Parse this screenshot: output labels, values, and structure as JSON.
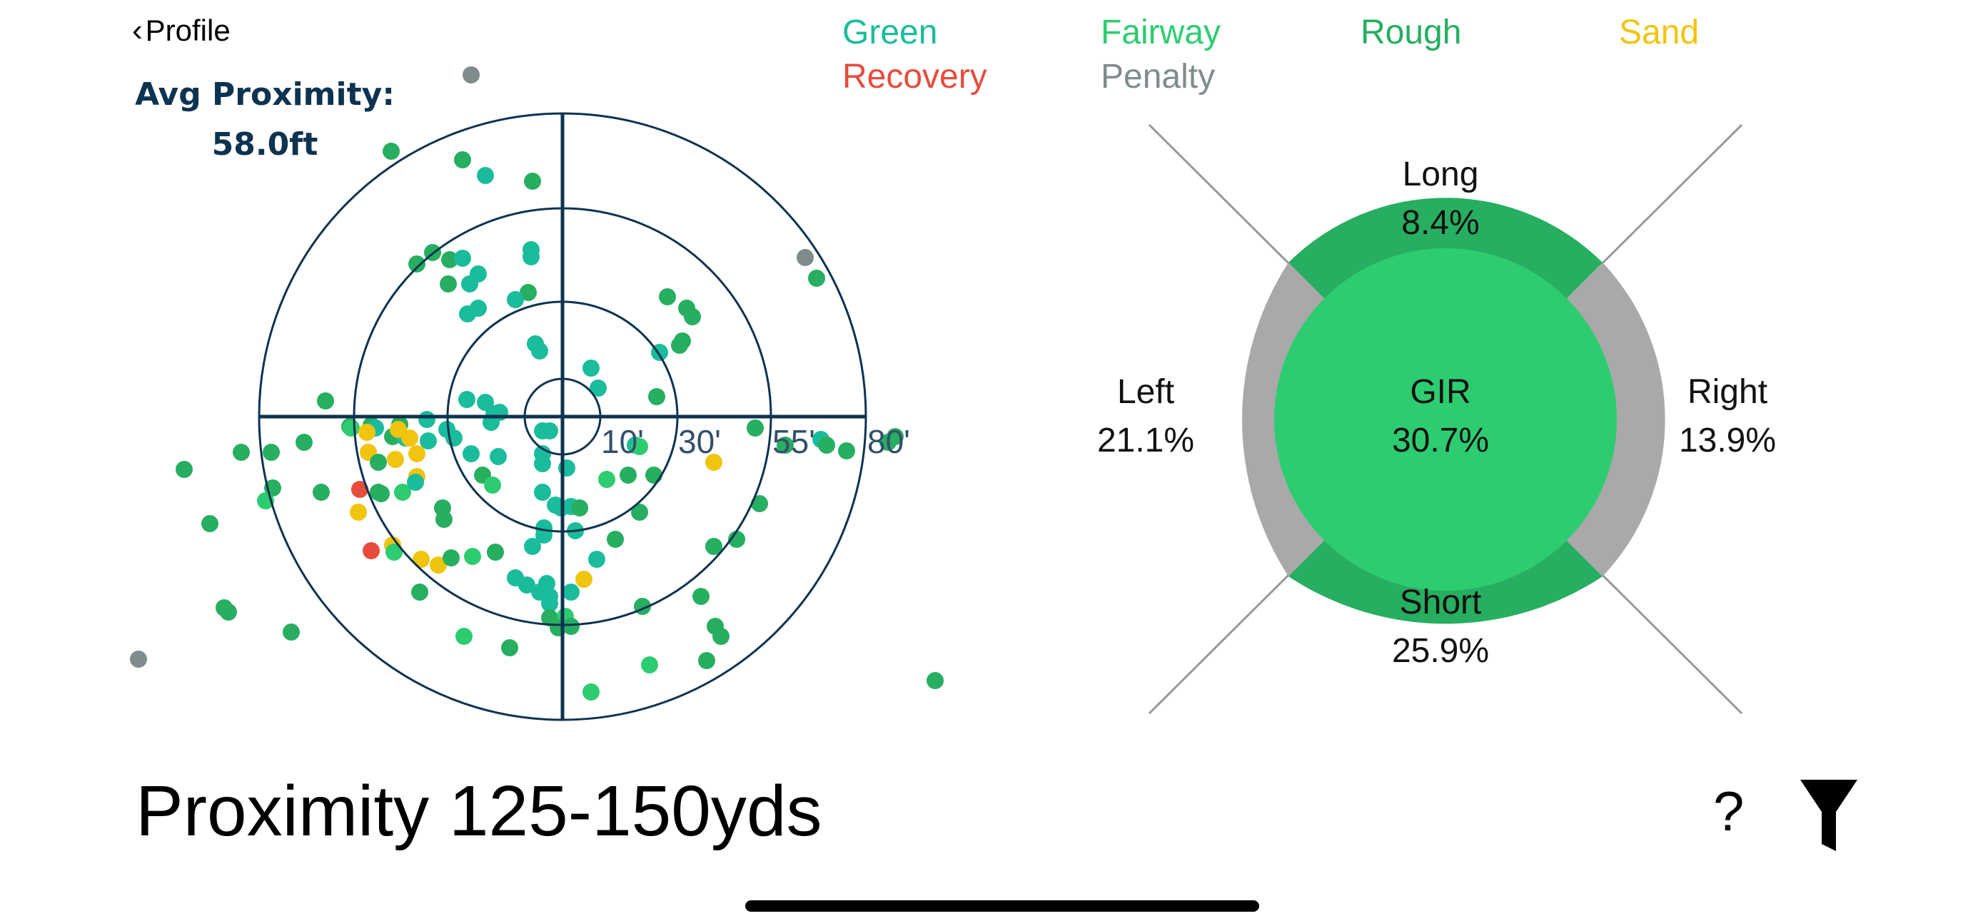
{
  "nav": {
    "back_label": "Profile"
  },
  "stats": {
    "avg_label": "Avg Proximity:",
    "avg_value": "58.0ft"
  },
  "legend": [
    {
      "label": "Green",
      "color": "#1bbc9b"
    },
    {
      "label": "Fairway",
      "color": "#2ecc71"
    },
    {
      "label": "Rough",
      "color": "#27ae60"
    },
    {
      "label": "Sand",
      "color": "#f1c40f"
    },
    {
      "label": "Recovery",
      "color": "#e74c3c"
    },
    {
      "label": "Penalty",
      "color": "#7f8c8d"
    }
  ],
  "target": {
    "ring_labels": [
      "10'",
      "30'",
      "55'",
      "80'"
    ],
    "line_color": "#0d3350"
  },
  "miss_chart": {
    "long": {
      "label": "Long",
      "value": "8.4%"
    },
    "left": {
      "label": "Left",
      "value": "21.1%"
    },
    "center": {
      "label": "GIR",
      "value": "30.7%"
    },
    "right": {
      "label": "Right",
      "value": "13.9%"
    },
    "short": {
      "label": "Short",
      "value": "25.9%"
    },
    "colors": {
      "center": "#2ecc71",
      "long_short": "#27ae60",
      "left_right": "#a9a9a9"
    }
  },
  "footer": {
    "title": "Proximity 125-150yds",
    "help_label": "?",
    "filter_icon": "filter-icon"
  }
}
